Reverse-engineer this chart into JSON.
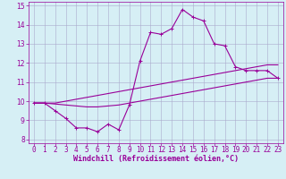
{
  "x": [
    0,
    1,
    2,
    3,
    4,
    5,
    6,
    7,
    8,
    9,
    10,
    11,
    12,
    13,
    14,
    15,
    16,
    17,
    18,
    19,
    20,
    21,
    22,
    23
  ],
  "main_line": [
    9.9,
    9.9,
    9.5,
    9.1,
    8.6,
    8.6,
    8.4,
    8.8,
    8.5,
    9.8,
    12.1,
    13.6,
    13.5,
    13.8,
    14.8,
    14.4,
    14.2,
    13.0,
    12.9,
    11.8,
    11.6,
    11.6,
    11.6,
    11.2
  ],
  "upper_line": [
    9.9,
    9.9,
    9.9,
    10.0,
    10.1,
    10.2,
    10.3,
    10.4,
    10.5,
    10.6,
    10.7,
    10.8,
    10.9,
    11.0,
    11.1,
    11.2,
    11.3,
    11.4,
    11.5,
    11.6,
    11.7,
    11.8,
    11.9,
    11.9
  ],
  "lower_line": [
    9.9,
    9.9,
    9.85,
    9.8,
    9.75,
    9.7,
    9.7,
    9.75,
    9.8,
    9.9,
    10.0,
    10.1,
    10.2,
    10.3,
    10.4,
    10.5,
    10.6,
    10.7,
    10.8,
    10.9,
    11.0,
    11.1,
    11.2,
    11.2
  ],
  "line_color": "#990099",
  "bg_color": "#d6eff5",
  "grid_color": "#aaaacc",
  "xlim": [
    -0.5,
    23.5
  ],
  "ylim": [
    7.8,
    15.2
  ],
  "yticks": [
    8,
    9,
    10,
    11,
    12,
    13,
    14,
    15
  ],
  "xticks": [
    0,
    1,
    2,
    3,
    4,
    5,
    6,
    7,
    8,
    9,
    10,
    11,
    12,
    13,
    14,
    15,
    16,
    17,
    18,
    19,
    20,
    21,
    22,
    23
  ],
  "xlabel": "Windchill (Refroidissement éolien,°C)",
  "xlabel_color": "#990099",
  "xlabel_fontsize": 6,
  "tick_fontsize": 5.5,
  "ylabel_fontsize": 6
}
